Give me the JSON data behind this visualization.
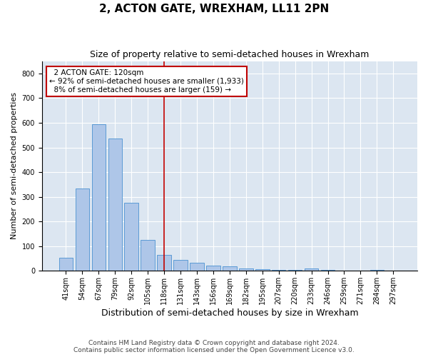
{
  "title": "2, ACTON GATE, WREXHAM, LL11 2PN",
  "subtitle": "Size of property relative to semi-detached houses in Wrexham",
  "xlabel": "Distribution of semi-detached houses by size in Wrexham",
  "ylabel": "Number of semi-detached properties",
  "categories": [
    "41sqm",
    "54sqm",
    "67sqm",
    "79sqm",
    "92sqm",
    "105sqm",
    "118sqm",
    "131sqm",
    "143sqm",
    "156sqm",
    "169sqm",
    "182sqm",
    "195sqm",
    "207sqm",
    "220sqm",
    "233sqm",
    "246sqm",
    "259sqm",
    "271sqm",
    "284sqm",
    "297sqm"
  ],
  "values": [
    52,
    335,
    595,
    535,
    275,
    125,
    65,
    45,
    32,
    22,
    18,
    10,
    8,
    5,
    5,
    10,
    3,
    2,
    0,
    5,
    2
  ],
  "bar_color": "#aec6e8",
  "bar_edge_color": "#5b9bd5",
  "marker_label": "2 ACTON GATE: 120sqm",
  "pct_smaller": 92,
  "n_smaller": 1933,
  "pct_larger": 8,
  "n_larger": 159,
  "vline_color": "#c00000",
  "annotation_box_color": "#c00000",
  "plot_bg_color": "#dce6f1",
  "footer": "Contains HM Land Registry data © Crown copyright and database right 2024.\nContains public sector information licensed under the Open Government Licence v3.0.",
  "title_fontsize": 11,
  "subtitle_fontsize": 9,
  "ylabel_fontsize": 8,
  "xlabel_fontsize": 9,
  "tick_fontsize": 7,
  "annot_fontsize": 7.5,
  "ylim": [
    0,
    850
  ],
  "vline_index": 6
}
